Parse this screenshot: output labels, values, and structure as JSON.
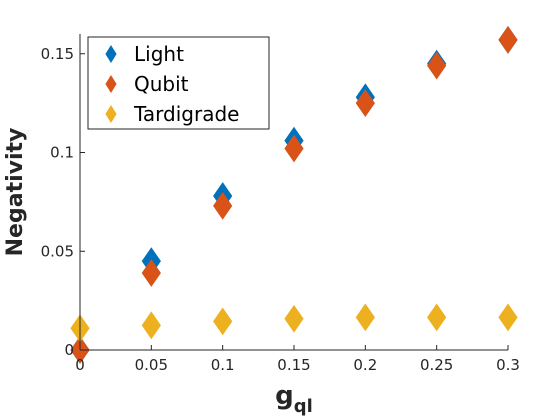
{
  "chart_data": {
    "type": "scatter",
    "title": "",
    "xlabel": "g",
    "xlabel_sub": "ql",
    "ylabel": "Negativity",
    "xlim": [
      0,
      0.3
    ],
    "ylim": [
      0,
      0.16
    ],
    "x_ticks": [
      0,
      0.05,
      0.1,
      0.15,
      0.2,
      0.25,
      0.3
    ],
    "x_tick_labels": [
      "0",
      "0.05",
      "0.1",
      "0.15",
      "0.2",
      "0.25",
      "0.3"
    ],
    "y_ticks": [
      0,
      0.05,
      0.1,
      0.15
    ],
    "y_tick_labels": [
      "0",
      "0.05",
      "0.1",
      "0.15"
    ],
    "grid": false,
    "legend_position": "top-left",
    "marker": "diamond",
    "series": [
      {
        "name": "Light",
        "color": "#0072BD",
        "x": [
          0,
          0.05,
          0.1,
          0.15,
          0.2,
          0.25,
          0.3
        ],
        "y": [
          0,
          0.045,
          0.078,
          0.106,
          0.128,
          0.145,
          0.157
        ]
      },
      {
        "name": "Qubit",
        "color": "#D95319",
        "x": [
          0,
          0.05,
          0.1,
          0.15,
          0.2,
          0.25,
          0.3
        ],
        "y": [
          0,
          0.039,
          0.073,
          0.102,
          0.125,
          0.144,
          0.157
        ]
      },
      {
        "name": "Tardigrade",
        "color": "#EDB120",
        "x": [
          0,
          0.05,
          0.1,
          0.15,
          0.2,
          0.25,
          0.3
        ],
        "y": [
          0.011,
          0.0125,
          0.0145,
          0.0158,
          0.0165,
          0.0165,
          0.0165
        ]
      }
    ]
  }
}
